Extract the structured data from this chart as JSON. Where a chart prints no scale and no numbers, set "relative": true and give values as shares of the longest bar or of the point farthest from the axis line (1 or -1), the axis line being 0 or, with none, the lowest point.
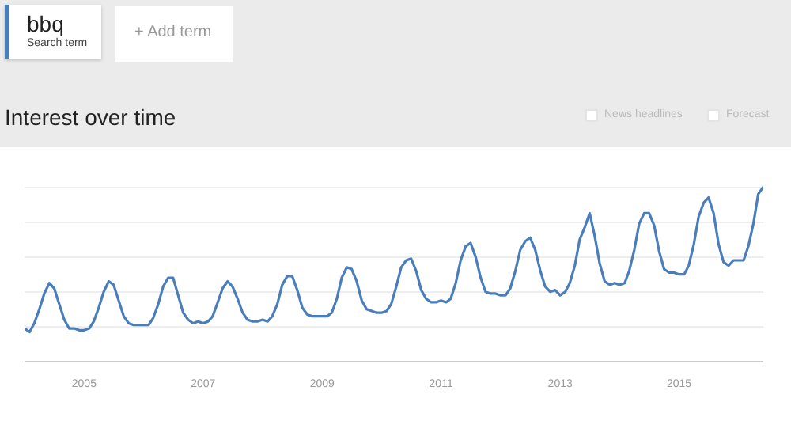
{
  "chart_data": {
    "type": "line",
    "title": "Interest over time",
    "relative": true,
    "annotations": [
      "Search term",
      "+ Add term",
      "News headlines",
      "Forecast"
    ],
    "x": [
      "2004-01",
      "2004-02",
      "2004-03",
      "2004-04",
      "2004-05",
      "2004-06",
      "2004-07",
      "2004-08",
      "2004-09",
      "2004-10",
      "2004-11",
      "2004-12",
      "2005-01",
      "2005-02",
      "2005-03",
      "2005-04",
      "2005-05",
      "2005-06",
      "2005-07",
      "2005-08",
      "2005-09",
      "2005-10",
      "2005-11",
      "2005-12",
      "2006-01",
      "2006-02",
      "2006-03",
      "2006-04",
      "2006-05",
      "2006-06",
      "2006-07",
      "2006-08",
      "2006-09",
      "2006-10",
      "2006-11",
      "2006-12",
      "2007-01",
      "2007-02",
      "2007-03",
      "2007-04",
      "2007-05",
      "2007-06",
      "2007-07",
      "2007-08",
      "2007-09",
      "2007-10",
      "2007-11",
      "2007-12",
      "2008-01",
      "2008-02",
      "2008-03",
      "2008-04",
      "2008-05",
      "2008-06",
      "2008-07",
      "2008-08",
      "2008-09",
      "2008-10",
      "2008-11",
      "2008-12",
      "2009-01",
      "2009-02",
      "2009-03",
      "2009-04",
      "2009-05",
      "2009-06",
      "2009-07",
      "2009-08",
      "2009-09",
      "2009-10",
      "2009-11",
      "2009-12",
      "2010-01",
      "2010-02",
      "2010-03",
      "2010-04",
      "2010-05",
      "2010-06",
      "2010-07",
      "2010-08",
      "2010-09",
      "2010-10",
      "2010-11",
      "2010-12",
      "2011-01",
      "2011-02",
      "2011-03",
      "2011-04",
      "2011-05",
      "2011-06",
      "2011-07",
      "2011-08",
      "2011-09",
      "2011-10",
      "2011-11",
      "2011-12",
      "2012-01",
      "2012-02",
      "2012-03",
      "2012-04",
      "2012-05",
      "2012-06",
      "2012-07",
      "2012-08",
      "2012-09",
      "2012-10",
      "2012-11",
      "2012-12",
      "2013-01",
      "2013-02",
      "2013-03",
      "2013-04",
      "2013-05",
      "2013-06",
      "2013-07",
      "2013-08",
      "2013-09",
      "2013-10",
      "2013-11",
      "2013-12",
      "2014-01",
      "2014-02",
      "2014-03",
      "2014-04",
      "2014-05",
      "2014-06",
      "2014-07",
      "2014-08",
      "2014-09",
      "2014-10",
      "2014-11",
      "2014-12",
      "2015-01",
      "2015-02",
      "2015-03",
      "2015-04",
      "2015-05",
      "2015-06",
      "2015-07",
      "2015-08",
      "2015-09",
      "2015-10",
      "2015-11",
      "2015-12",
      "2016-01",
      "2016-02",
      "2016-03",
      "2016-04",
      "2016-05",
      "2016-06"
    ],
    "series": [
      {
        "name": "bbq",
        "color": "#4a7ebb",
        "values": [
          0.19,
          0.17,
          0.22,
          0.3,
          0.39,
          0.45,
          0.42,
          0.33,
          0.24,
          0.19,
          0.19,
          0.18,
          0.18,
          0.19,
          0.23,
          0.31,
          0.4,
          0.46,
          0.44,
          0.35,
          0.26,
          0.22,
          0.21,
          0.21,
          0.21,
          0.21,
          0.25,
          0.33,
          0.43,
          0.48,
          0.48,
          0.38,
          0.28,
          0.24,
          0.22,
          0.23,
          0.22,
          0.23,
          0.26,
          0.34,
          0.42,
          0.46,
          0.43,
          0.36,
          0.28,
          0.24,
          0.23,
          0.23,
          0.24,
          0.23,
          0.26,
          0.33,
          0.44,
          0.49,
          0.49,
          0.41,
          0.31,
          0.27,
          0.26,
          0.26,
          0.26,
          0.26,
          0.28,
          0.36,
          0.48,
          0.54,
          0.53,
          0.46,
          0.35,
          0.3,
          0.29,
          0.28,
          0.28,
          0.29,
          0.33,
          0.43,
          0.54,
          0.58,
          0.59,
          0.52,
          0.41,
          0.36,
          0.34,
          0.34,
          0.35,
          0.34,
          0.36,
          0.45,
          0.58,
          0.66,
          0.68,
          0.6,
          0.48,
          0.4,
          0.39,
          0.39,
          0.38,
          0.38,
          0.42,
          0.52,
          0.64,
          0.69,
          0.71,
          0.64,
          0.52,
          0.43,
          0.4,
          0.41,
          0.38,
          0.4,
          0.45,
          0.55,
          0.7,
          0.77,
          0.85,
          0.72,
          0.56,
          0.46,
          0.44,
          0.45,
          0.44,
          0.45,
          0.52,
          0.64,
          0.79,
          0.85,
          0.85,
          0.78,
          0.63,
          0.53,
          0.51,
          0.51,
          0.5,
          0.5,
          0.55,
          0.67,
          0.83,
          0.91,
          0.94,
          0.85,
          0.67,
          0.57,
          0.55,
          0.58,
          0.58,
          0.58,
          0.66,
          0.79,
          0.96,
          1.0
        ]
      }
    ],
    "xlim": [
      "2004-01",
      "2016-06"
    ],
    "xticks": [
      "2005",
      "2007",
      "2009",
      "2011",
      "2013",
      "2015"
    ],
    "grid": "y",
    "legend": "top left",
    "marker": "none",
    "line_style": "solid"
  }
}
